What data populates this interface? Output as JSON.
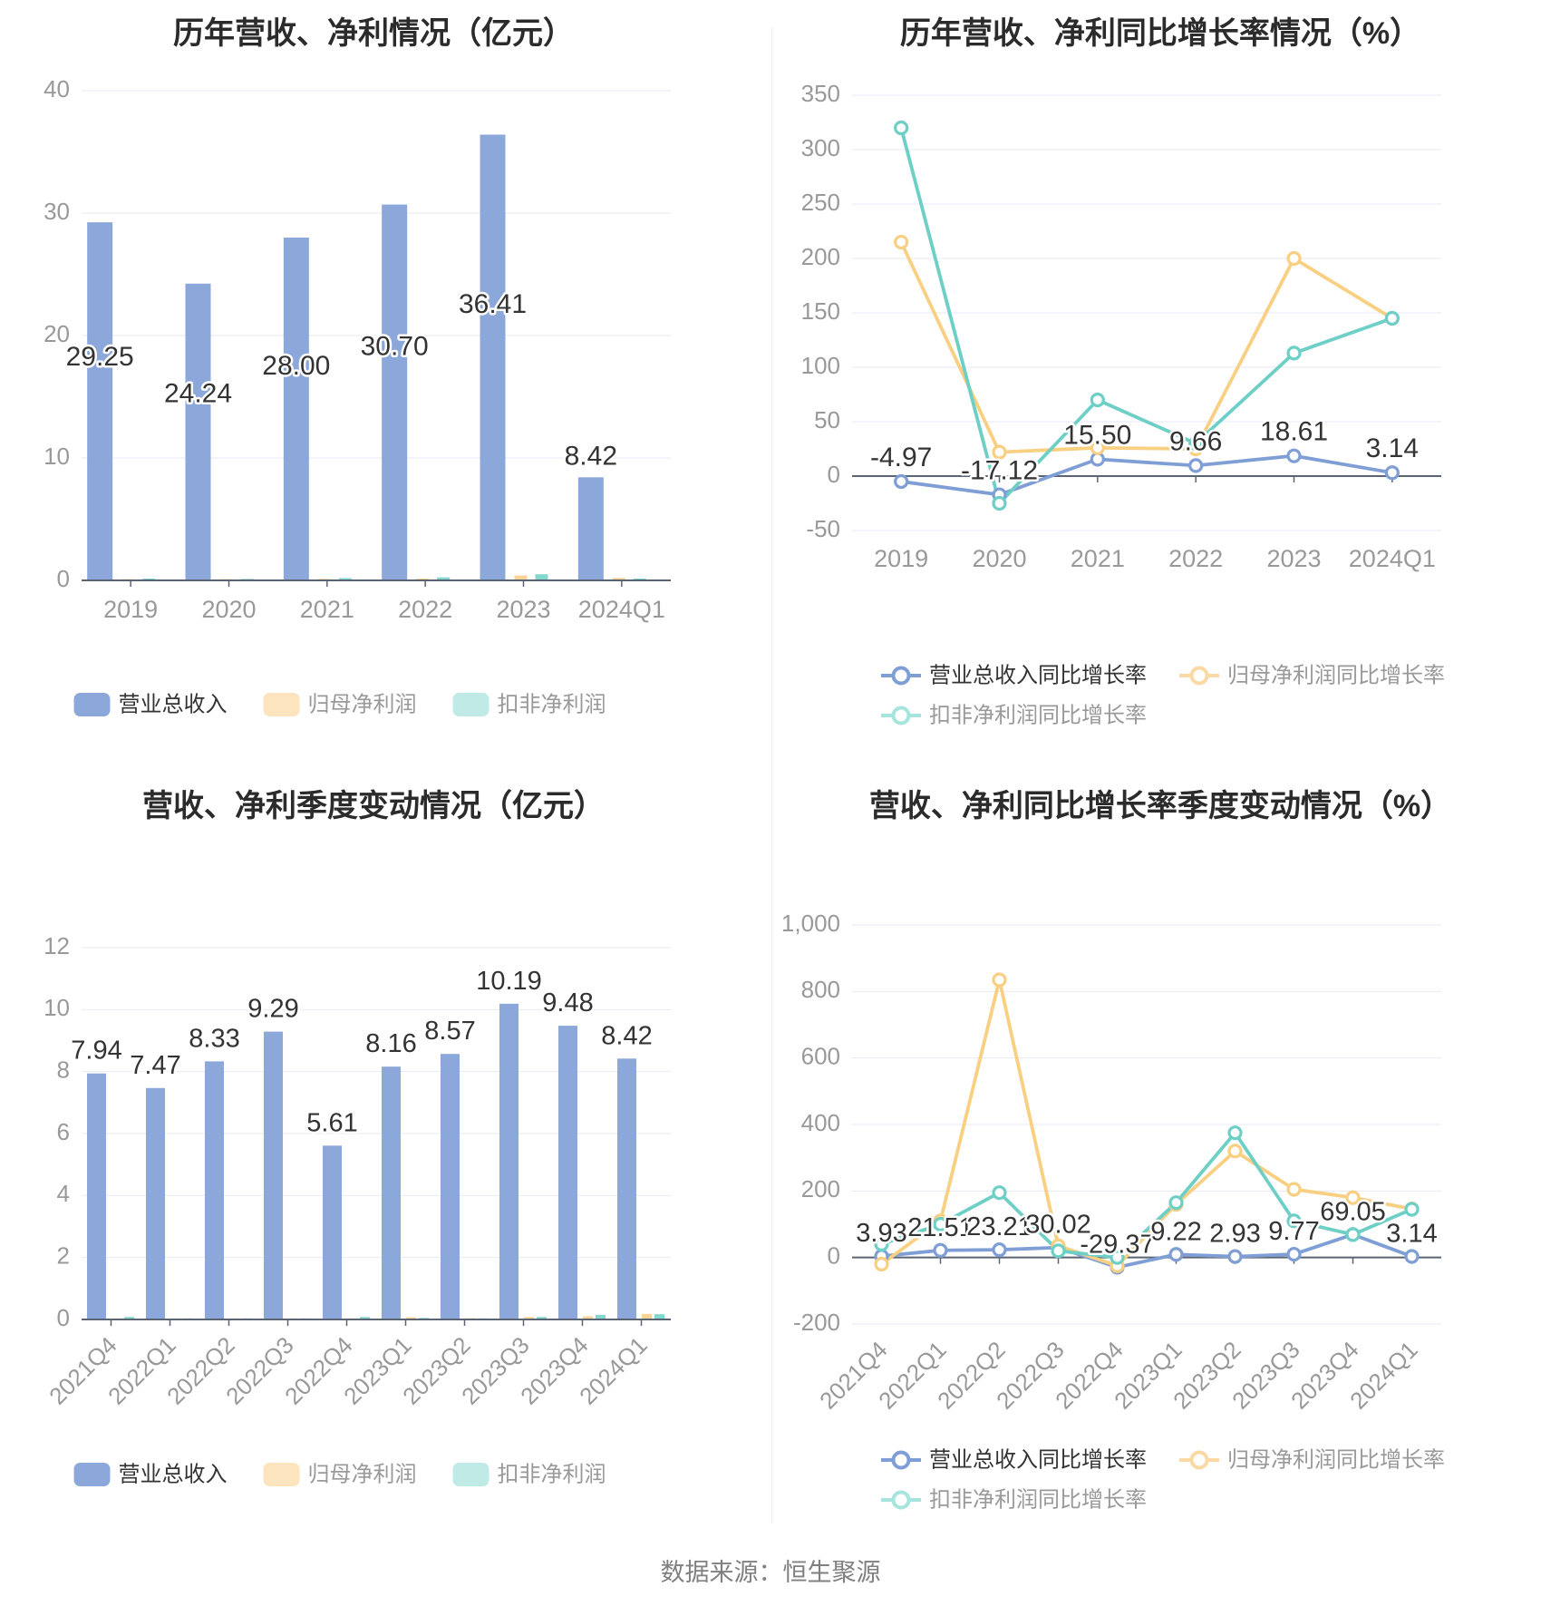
{
  "page": {
    "caption": "数据来源：恒生聚源",
    "background": "#ffffff"
  },
  "palette": {
    "title_color": "#2b2b2b",
    "grid_color": "#e7eaf6",
    "axis_color": "#5a6472",
    "tick_label_color": "#999999",
    "value_label_color": "#333333",
    "legend_text_primary": "#333333",
    "legend_text_secondary": "#999999",
    "caption_color": "#808080"
  },
  "chart_data": [
    {
      "id": "yearly-results",
      "type": "bar",
      "title": "历年营收、净利情况（亿元）",
      "categories": [
        "2019",
        "2020",
        "2021",
        "2022",
        "2023",
        "2024Q1"
      ],
      "ylim": [
        0,
        40
      ],
      "yticks": [
        0,
        10,
        20,
        30,
        40
      ],
      "ytick_labels": [
        "0",
        "10",
        "20",
        "30",
        "40"
      ],
      "grid": true,
      "legend_position": "bottom-center",
      "series": [
        {
          "name": "营业总收入",
          "values": [
            29.25,
            24.24,
            28.0,
            30.7,
            36.41,
            8.42
          ],
          "color": "#8CA8DB",
          "legend_color": "#8CA8DB",
          "labeled": true
        },
        {
          "name": "归母净利润",
          "values": [
            0.1,
            0.1,
            0.12,
            0.15,
            0.4,
            0.2
          ],
          "color": "#F9D494",
          "legend_color": "#FBE4BE",
          "labeled": false
        },
        {
          "name": "扣非净利润",
          "values": [
            0.15,
            0.12,
            0.18,
            0.25,
            0.5,
            0.15
          ],
          "color": "#82D7CF",
          "legend_color": "#C0EAE6",
          "labeled": false
        }
      ]
    },
    {
      "id": "yearly-growth",
      "type": "line",
      "title": "历年营收、净利同比增长率情况（%）",
      "categories": [
        "2019",
        "2020",
        "2021",
        "2022",
        "2023",
        "2024Q1"
      ],
      "ylim": [
        -50,
        350
      ],
      "yticks": [
        -50,
        0,
        50,
        100,
        150,
        200,
        250,
        300,
        350
      ],
      "ytick_labels": [
        "-50",
        "0",
        "50",
        "100",
        "150",
        "200",
        "250",
        "300",
        "350"
      ],
      "grid": true,
      "legend_position": "bottom-left",
      "series": [
        {
          "name": "营业总收入同比增长率",
          "values": [
            -4.97,
            -17.12,
            15.5,
            9.66,
            18.61,
            3.14
          ],
          "color": "#7E9ED5",
          "legend_color": "#7E9ED5",
          "labeled": true
        },
        {
          "name": "归母净利润同比增长率",
          "values": [
            215,
            22,
            26,
            25,
            200,
            145
          ],
          "color": "#F9CF82",
          "legend_color": "#FAD9A4",
          "labeled": false
        },
        {
          "name": "扣非净利润同比增长率",
          "values": [
            320,
            -25,
            70,
            30,
            113,
            145
          ],
          "color": "#6DCFC6",
          "legend_color": "#A6E4DE",
          "labeled": false
        }
      ]
    },
    {
      "id": "quarterly-results",
      "type": "bar",
      "title": "营收、净利季度变动情况（亿元）",
      "categories": [
        "2021Q4",
        "2022Q1",
        "2022Q2",
        "2022Q3",
        "2022Q4",
        "2023Q1",
        "2023Q2",
        "2023Q3",
        "2023Q4",
        "2024Q1"
      ],
      "ylim": [
        0,
        12
      ],
      "yticks": [
        0,
        2,
        4,
        6,
        8,
        10,
        12
      ],
      "ytick_labels": [
        "0",
        "2",
        "4",
        "6",
        "8",
        "10",
        "12"
      ],
      "grid": true,
      "legend_position": "bottom-center",
      "series": [
        {
          "name": "营业总收入",
          "values": [
            7.94,
            7.47,
            8.33,
            9.29,
            5.61,
            8.16,
            8.57,
            10.19,
            9.48,
            8.42
          ],
          "color": "#8CA8DB",
          "legend_color": "#8CA8DB",
          "labeled": true
        },
        {
          "name": "归母净利润",
          "values": [
            0.02,
            0.02,
            0.02,
            0.03,
            0.03,
            0.07,
            0.04,
            0.08,
            0.1,
            0.18
          ],
          "color": "#F9D494",
          "legend_color": "#FBE4BE",
          "labeled": false
        },
        {
          "name": "扣非净利润",
          "values": [
            0.08,
            0.02,
            0.02,
            0.03,
            0.08,
            0.05,
            0.03,
            0.08,
            0.15,
            0.17
          ],
          "color": "#82D7CF",
          "legend_color": "#C0EAE6",
          "labeled": false
        }
      ]
    },
    {
      "id": "quarterly-growth",
      "type": "line",
      "title": "营收、净利同比增长率季度变动情况（%）",
      "categories": [
        "2021Q4",
        "2022Q1",
        "2022Q2",
        "2022Q3",
        "2022Q4",
        "2023Q1",
        "2023Q2",
        "2023Q3",
        "2023Q4",
        "2024Q1"
      ],
      "ylim": [
        -200,
        1000
      ],
      "yticks": [
        -200,
        0,
        200,
        400,
        600,
        800,
        1000
      ],
      "ytick_labels": [
        "-200",
        "0",
        "200",
        "400",
        "600",
        "800",
        "1,000"
      ],
      "grid": true,
      "legend_position": "bottom-left",
      "series": [
        {
          "name": "营业总收入同比增长率",
          "values": [
            3.93,
            21.51,
            23.21,
            30.02,
            -29.37,
            9.22,
            2.93,
            9.77,
            69.05,
            3.14
          ],
          "color": "#7E9ED5",
          "legend_color": "#7E9ED5",
          "labeled": true
        },
        {
          "name": "归母净利润同比增长率",
          "values": [
            -20,
            110,
            835,
            35,
            -25,
            160,
            320,
            205,
            180,
            146
          ],
          "color": "#F9CF82",
          "legend_color": "#FAD9A4",
          "labeled": false
        },
        {
          "name": "扣非净利润同比增长率",
          "values": [
            40,
            100,
            195,
            20,
            0,
            165,
            375,
            110,
            69,
            145
          ],
          "color": "#6DCFC6",
          "legend_color": "#A6E4DE",
          "labeled": false
        }
      ]
    }
  ]
}
